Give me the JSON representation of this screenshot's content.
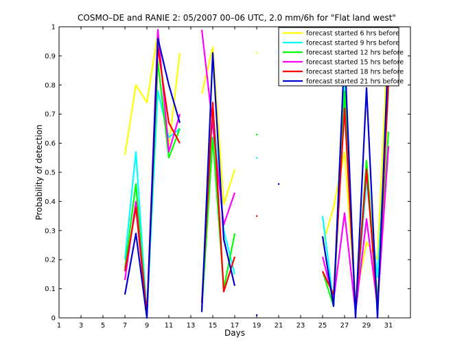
{
  "chart_data": {
    "type": "line",
    "title": "COSMO–DE and RANIE 2: 05/2007 00–06 UTC, 2.0 mm/6h for \"Flat land west\"",
    "xlabel": "Days",
    "ylabel": "Probability of detection",
    "xlim": [
      1,
      33
    ],
    "ylim": [
      0,
      1
    ],
    "xticks": [
      1,
      3,
      5,
      7,
      9,
      11,
      13,
      15,
      17,
      19,
      21,
      23,
      25,
      27,
      29,
      31
    ],
    "yticks": [
      0,
      0.1,
      0.2,
      0.3,
      0.4,
      0.5,
      0.6,
      0.7,
      0.8,
      0.9,
      1
    ],
    "ytick_labels": [
      "0",
      "0.1",
      "0.2",
      "0.3",
      "0.4",
      "0.5",
      "0.6",
      "0.7",
      "0.8",
      "0.9",
      "1"
    ],
    "legend_position": "top-right",
    "grid": false,
    "series": [
      {
        "name": "forecast started 6 hrs before",
        "color": "#ffff00",
        "values": [
          null,
          null,
          null,
          null,
          null,
          null,
          0.56,
          0.8,
          0.74,
          0.98,
          0.59,
          0.91,
          null,
          0.77,
          0.93,
          0.39,
          0.51,
          null,
          0.91,
          null,
          null,
          null,
          null,
          null,
          0.25,
          0.38,
          0.57,
          0.06,
          0.26,
          0.2,
          0.99
        ]
      },
      {
        "name": "forecast started 9 hrs before",
        "color": "#00ffff",
        "values": [
          null,
          null,
          null,
          null,
          null,
          null,
          0.2,
          0.57,
          0.01,
          0.78,
          0.62,
          0.65,
          null,
          0.05,
          0.72,
          0.3,
          0.15,
          null,
          0.55,
          null,
          null,
          null,
          null,
          null,
          0.35,
          0.05,
          0.85,
          0.02,
          0.47,
          0.14,
          0.78
        ]
      },
      {
        "name": "forecast started 12 hrs before",
        "color": "#00ff00",
        "values": [
          null,
          null,
          null,
          null,
          null,
          null,
          0.17,
          0.46,
          0.01,
          0.88,
          0.55,
          0.65,
          null,
          0.03,
          0.62,
          0.1,
          0.29,
          null,
          0.63,
          null,
          null,
          null,
          null,
          null,
          0.16,
          0.04,
          0.78,
          0.02,
          0.54,
          0.06,
          0.64
        ]
      },
      {
        "name": "forecast started 15 hrs before",
        "color": "#ff00ff",
        "values": [
          null,
          null,
          null,
          null,
          null,
          null,
          0.13,
          0.4,
          0.01,
          0.99,
          0.57,
          0.7,
          null,
          0.99,
          0.66,
          0.32,
          0.43,
          null,
          null,
          null,
          null,
          null,
          null,
          null,
          0.21,
          0.06,
          0.36,
          0.02,
          0.34,
          0.04,
          0.59
        ]
      },
      {
        "name": "forecast started 18 hrs before",
        "color": "#ff0000",
        "values": [
          null,
          null,
          null,
          null,
          null,
          null,
          0.16,
          0.38,
          0.01,
          0.93,
          0.67,
          0.6,
          null,
          0.05,
          0.74,
          0.09,
          0.21,
          null,
          0.35,
          null,
          null,
          null,
          null,
          null,
          0.16,
          0.08,
          0.72,
          0.03,
          0.51,
          0.03,
          0.81
        ]
      },
      {
        "name": "forecast started 21 hrs before",
        "color": "#0000cc",
        "values": [
          null,
          null,
          null,
          null,
          null,
          null,
          0.08,
          0.29,
          0.0,
          0.96,
          0.8,
          0.67,
          null,
          0.02,
          0.91,
          0.27,
          0.11,
          null,
          0.01,
          null,
          0.46,
          null,
          null,
          null,
          0.28,
          0.04,
          0.92,
          0.0,
          0.79,
          0.0,
          0.93
        ]
      }
    ]
  }
}
